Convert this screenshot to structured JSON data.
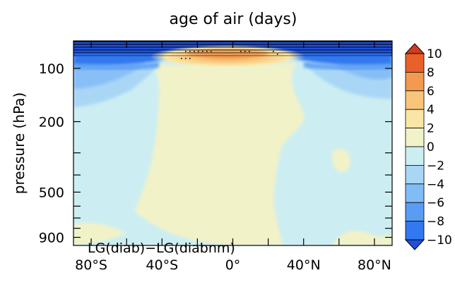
{
  "chart_data": {
    "type": "heatmap",
    "title": "age of air (days)",
    "ylabel": "pressure (hPa)",
    "xlabel": "",
    "panel_label": "LG(diab)−LG(diabnm)",
    "x_axis": {
      "range": [
        -90,
        90
      ],
      "labeled_ticks": [
        {
          "value": -80,
          "label": "80°S"
        },
        {
          "value": -40,
          "label": "40°S"
        },
        {
          "value": 0,
          "label": "0°"
        },
        {
          "value": 40,
          "label": "40°N"
        },
        {
          "value": 80,
          "label": "80°N"
        }
      ],
      "minor_ticks": [
        -60,
        -20,
        20,
        60
      ]
    },
    "y_axis": {
      "scale": "log",
      "range_hpa": [
        1000,
        70
      ],
      "labeled_ticks": [
        {
          "value": 100,
          "label": "100"
        },
        {
          "value": 200,
          "label": "200"
        },
        {
          "value": 500,
          "label": "500"
        },
        {
          "value": 900,
          "label": "900"
        }
      ],
      "minor_ticks": [
        300,
        400,
        600,
        700,
        800
      ]
    },
    "colorbar": {
      "levels": [
        -10,
        -8,
        -6,
        -4,
        -2,
        0,
        2,
        4,
        6,
        8,
        10
      ],
      "labels": [
        "10",
        "8",
        "6",
        "4",
        "2",
        "0",
        "−2",
        "−4",
        "−6",
        "−8",
        "−10"
      ],
      "colors": [
        "#1e50dc",
        "#3278ee",
        "#5a9cf4",
        "#82bcf6",
        "#aad6f6",
        "#cceef2",
        "#f2f2c8",
        "#f9e6a6",
        "#f8c57a",
        "#f29a4e",
        "#e8602a",
        "#d43a1c"
      ],
      "extend": "both"
    },
    "field_description": {
      "dominant_value_range": [
        -2,
        2
      ],
      "stratosphere_above_100hPa": "strong negative (< -10)",
      "tropical_tropopause_near_100hPa": "positive maximum (4 to 8) between 20S and 20N",
      "subtropical_upper_troposphere_200hPa": "weak negative (-4 to -2) poleward of 40"
    }
  }
}
